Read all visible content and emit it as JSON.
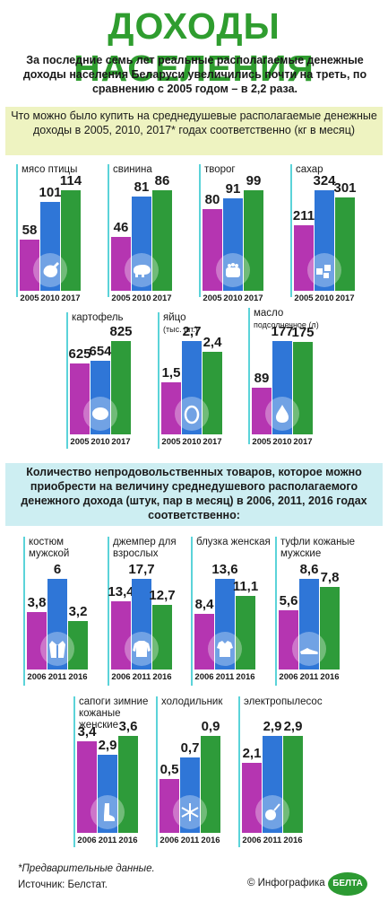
{
  "header": {
    "title": "ДОХОДЫ НАСЕЛЕНИЯ",
    "intro": "За последние семь лет реальные располагаемые денежные доходы населения Беларуси увеличились почти на треть, по сравнению с 2005 годом – в 2,2 раза."
  },
  "section1": {
    "heading": "Что можно было купить на среднедушевые располагаемые денежные доходы в 2005, 2010, 2017* годах соответственно (кг в месяц)"
  },
  "section2": {
    "heading": "Количество непродовольственных товаров, которое можно приобрести на величину среднедушевого располагаемого денежного дохода (штук, пар в месяц) в 2006, 2011, 2016 годах соответственно:"
  },
  "colors": {
    "y1": "#b535b1",
    "y2": "#2f76d7",
    "y3": "#2e9b3a",
    "title": "#2f9d2f"
  },
  "chart_data": [
    {
      "type": "bar",
      "title": "мясо птицы",
      "icon": "chicken-icon",
      "categories": [
        "2005",
        "2010",
        "2017"
      ],
      "values": [
        58,
        101,
        114
      ],
      "labels": [
        "58",
        "101",
        "114"
      ]
    },
    {
      "type": "bar",
      "title": "свинина",
      "icon": "pig-icon",
      "categories": [
        "2005",
        "2010",
        "2017"
      ],
      "values": [
        46,
        81,
        86
      ],
      "labels": [
        "46",
        "81",
        "86"
      ]
    },
    {
      "type": "bar",
      "title": "творог",
      "icon": "cottage-cheese-icon",
      "categories": [
        "2005",
        "2010",
        "2017"
      ],
      "values": [
        80,
        91,
        99
      ],
      "labels": [
        "80",
        "91",
        "99"
      ]
    },
    {
      "type": "bar",
      "title": "сахар",
      "icon": "sugar-icon",
      "categories": [
        "2005",
        "2010",
        "2017"
      ],
      "values": [
        211,
        324,
        301
      ],
      "labels": [
        "211",
        "324",
        "301"
      ]
    },
    {
      "type": "bar",
      "title": "картофель",
      "icon": "potato-icon",
      "categories": [
        "2005",
        "2010",
        "2017"
      ],
      "values": [
        625,
        654,
        825
      ],
      "labels": [
        "625",
        "654",
        "825"
      ]
    },
    {
      "type": "bar",
      "title": "яйцо",
      "unit": "(тыс. шт.)",
      "icon": "egg-icon",
      "categories": [
        "2005",
        "2010",
        "2017"
      ],
      "values": [
        1.5,
        2.7,
        2.4
      ],
      "labels": [
        "1,5",
        "2,7",
        "2,4"
      ]
    },
    {
      "type": "bar",
      "title": "масло",
      "unit": "подсолнечное (л)",
      "icon": "oil-drop-icon",
      "categories": [
        "2005",
        "2010",
        "2017"
      ],
      "values": [
        89,
        177,
        175
      ],
      "labels": [
        "89",
        "177",
        "175"
      ]
    },
    {
      "type": "bar",
      "title": "костюм мужской",
      "icon": "suit-icon",
      "categories": [
        "2006",
        "2011",
        "2016"
      ],
      "values": [
        3.8,
        6,
        3.2
      ],
      "labels": [
        "3,8",
        "6",
        "3,2"
      ]
    },
    {
      "type": "bar",
      "title": "джемпер для взрослых",
      "icon": "sweater-icon",
      "categories": [
        "2006",
        "2011",
        "2016"
      ],
      "values": [
        13.4,
        17.7,
        12.7
      ],
      "labels": [
        "13,4",
        "17,7",
        "12,7"
      ]
    },
    {
      "type": "bar",
      "title": "блузка женская",
      "icon": "blouse-icon",
      "categories": [
        "2006",
        "2011",
        "2016"
      ],
      "values": [
        8.4,
        13.6,
        11.1
      ],
      "labels": [
        "8,4",
        "13,6",
        "11,1"
      ]
    },
    {
      "type": "bar",
      "title": "туфли кожаные мужские",
      "icon": "shoe-icon",
      "categories": [
        "2006",
        "2011",
        "2016"
      ],
      "values": [
        5.6,
        8.6,
        7.8
      ],
      "labels": [
        "5,6",
        "8,6",
        "7,8"
      ]
    },
    {
      "type": "bar",
      "title": "сапоги зимние кожаные женские",
      "icon": "boot-icon",
      "categories": [
        "2006",
        "2011",
        "2016"
      ],
      "values": [
        3.4,
        2.9,
        3.6
      ],
      "labels": [
        "3,4",
        "2,9",
        "3,6"
      ]
    },
    {
      "type": "bar",
      "title": "холодильник",
      "icon": "snowflake-icon",
      "categories": [
        "2006",
        "2011",
        "2016"
      ],
      "values": [
        0.5,
        0.7,
        0.9
      ],
      "labels": [
        "0,5",
        "0,7",
        "0,9"
      ]
    },
    {
      "type": "bar",
      "title": "электропылесос",
      "icon": "vacuum-icon",
      "categories": [
        "2006",
        "2011",
        "2016"
      ],
      "values": [
        2.1,
        2.9,
        2.9
      ],
      "labels": [
        "2,1",
        "2,9",
        "2,9"
      ]
    }
  ],
  "footer": {
    "note": "*Предварительные данные.",
    "source": "Источник: Белстат.",
    "credit": "© Инфографика",
    "logo": "БЕЛТА"
  }
}
